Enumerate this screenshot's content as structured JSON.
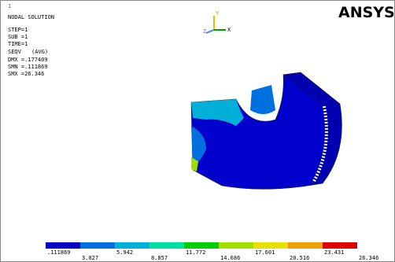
{
  "header": {
    "window_number": "1",
    "title": "NODAL SOLUTION",
    "lines": [
      "STEP=1",
      "SUB =1",
      "TIME=1"
    ],
    "result": "SEQV",
    "avg": "(AVG)",
    "stats": [
      "DMX =.177409",
      "SMN =.111869",
      "SMX =26.346"
    ]
  },
  "logo": "ANSYS",
  "triad": {
    "y": "Y",
    "x": "X",
    "z": "Z"
  },
  "legend": {
    "colors": [
      "#0000c8",
      "#0070e0",
      "#00b0d8",
      "#00e0a0",
      "#00d000",
      "#a0e000",
      "#e8e000",
      "#f0a000",
      "#e00000"
    ],
    "labels": [
      ".111869",
      "3.027",
      "5.942",
      "8.857",
      "11.772",
      "14.686",
      "17.601",
      "20.516",
      "23.431",
      "26.346"
    ]
  }
}
